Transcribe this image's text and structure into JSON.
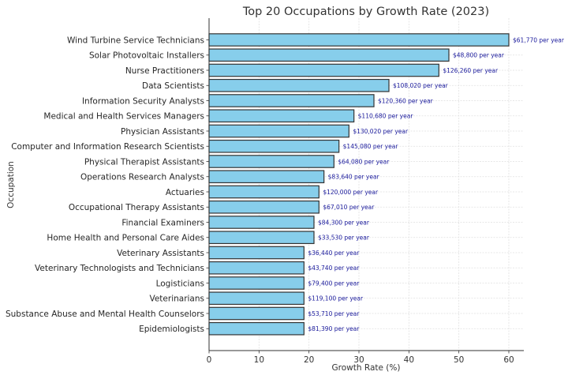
{
  "chart_data": {
    "type": "bar",
    "orientation": "horizontal",
    "title": "Top 20 Occupations by Growth Rate (2023)",
    "xlabel": "Growth Rate (%)",
    "ylabel": "Occupation",
    "xlim": [
      0,
      63
    ],
    "xticks": [
      0,
      10,
      20,
      30,
      40,
      50,
      60
    ],
    "grid": true,
    "bar_color": "#87ceeb",
    "bar_edge_color": "#333333",
    "label_color": "#1a1a9c",
    "categories": [
      "Wind Turbine Service Technicians",
      "Solar Photovoltaic Installers",
      "Nurse Practitioners",
      "Data Scientists",
      "Information Security Analysts",
      "Medical and Health Services Managers",
      "Physician Assistants",
      "Computer and Information Research Scientists",
      "Physical Therapist Assistants",
      "Operations Research Analysts",
      "Actuaries",
      "Occupational Therapy Assistants",
      "Financial Examiners",
      "Home Health and Personal Care Aides",
      "Veterinary Assistants",
      "Veterinary Technologists and Technicians",
      "Logisticians",
      "Veterinarians",
      "Substance Abuse and Mental Health Counselors",
      "Epidemiologists"
    ],
    "values": [
      60,
      48,
      46,
      36,
      33,
      29,
      28,
      26,
      25,
      23,
      22,
      22,
      21,
      21,
      19,
      19,
      19,
      19,
      19,
      19
    ],
    "data_labels": [
      "$61,770 per year",
      "$48,800 per year",
      "$126,260 per year",
      "$108,020 per year",
      "$120,360 per year",
      "$110,680 per year",
      "$130,020 per year",
      "$145,080 per year",
      "$64,080 per year",
      "$83,640 per year",
      "$120,000 per year",
      "$67,010 per year",
      "$84,300 per year",
      "$33,530 per year",
      "$36,440 per year",
      "$43,740 per year",
      "$79,400 per year",
      "$119,100 per year",
      "$53,710 per year",
      "$81,390 per year"
    ]
  }
}
